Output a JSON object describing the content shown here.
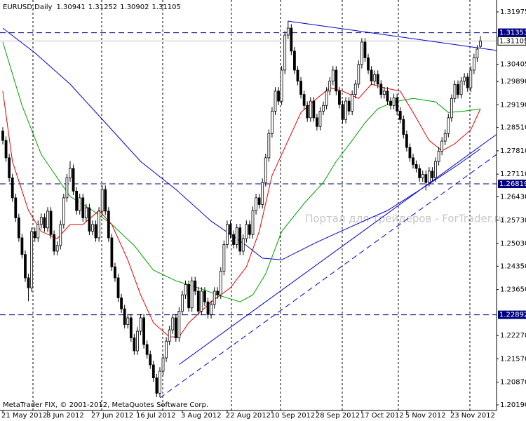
{
  "chart_data": {
    "type": "candlestick",
    "symbol": "EURUSD,Daily",
    "footer": "MetaTrader FIX, © 2001-2012, MetaQuotes Software Corp.",
    "watermark": "Портал для трейдеров - ForTrader.ru",
    "categories": [
      "21 May 2012",
      null,
      null,
      null,
      null,
      null,
      null,
      null,
      null,
      null,
      null,
      null,
      null,
      null,
      "8 Jun 2012",
      null,
      null,
      null,
      null,
      null,
      null,
      null,
      null,
      null,
      null,
      null,
      null,
      null,
      "27 Jun 2012",
      null,
      null,
      null,
      null,
      null,
      null,
      null,
      null,
      null,
      null,
      null,
      null,
      null,
      "16 Jul 2012",
      null,
      null,
      null,
      null,
      null,
      null,
      null,
      null,
      null,
      null,
      null,
      null,
      null,
      "3 Aug 2012",
      null,
      null,
      null,
      null,
      null,
      null,
      null,
      null,
      null,
      null,
      null,
      null,
      null,
      "22 Aug 2012",
      null,
      null,
      null,
      null,
      null,
      null,
      null,
      null,
      null,
      null,
      null,
      null,
      null,
      "10 Sep 2012",
      null,
      null,
      null,
      null,
      null,
      null,
      null,
      null,
      null,
      null,
      null,
      null,
      null,
      "28 Sep 2012",
      null,
      null,
      null,
      null,
      null,
      null,
      null,
      null,
      null,
      null,
      null,
      null,
      null,
      "17 Oct 2012",
      null,
      null,
      null,
      null,
      null,
      null,
      null,
      null,
      null,
      null,
      null,
      null,
      null,
      "5 Nov 2012",
      null,
      null,
      null,
      null,
      null,
      null,
      null,
      null,
      null,
      null,
      null,
      null,
      null,
      "23 Nov 2012",
      null,
      null,
      null,
      null,
      null,
      null,
      null,
      null,
      null
    ],
    "open": [
      1.284,
      1.2812,
      1.276,
      1.27,
      1.264,
      1.258,
      1.252,
      1.247,
      1.24,
      1.237,
      1.2539,
      1.252,
      1.256,
      1.2581,
      1.255,
      1.26,
      1.253,
      1.248,
      1.2497,
      1.256,
      1.264,
      1.27,
      1.2728,
      1.266,
      1.2602,
      1.264,
      1.258,
      1.261,
      1.254,
      1.256,
      1.252,
      1.26,
      1.2665,
      1.26,
      1.252,
      1.2433,
      1.24,
      1.234,
      1.2307,
      1.226,
      1.228,
      1.222,
      1.2181,
      1.224,
      1.228,
      1.22,
      1.217,
      1.2139,
      1.21,
      1.2054,
      1.212,
      1.216,
      1.221,
      1.2244,
      1.228,
      1.222,
      1.23,
      1.2349,
      1.238,
      1.231,
      1.2391,
      1.236,
      1.23,
      1.236,
      1.2328,
      1.229,
      1.232,
      1.236,
      1.2349,
      1.242,
      1.25,
      1.256,
      1.253,
      1.25,
      1.255,
      1.248,
      1.2518,
      1.256,
      1.253,
      1.2602,
      1.264,
      1.262,
      1.2686,
      1.276,
      1.2833,
      1.29,
      1.296,
      1.293,
      1.3023,
      1.3128,
      1.3149,
      1.308,
      1.3023,
      1.299,
      1.295,
      1.2917,
      1.288,
      1.293,
      1.288,
      1.2854,
      1.29,
      1.2917,
      1.296,
      1.299,
      1.3023,
      1.296,
      1.292,
      1.2875,
      1.293,
      1.29,
      1.295,
      1.2981,
      1.304,
      1.3107,
      1.306,
      1.3023,
      1.299,
      1.301,
      1.2981,
      1.295,
      1.296,
      1.293,
      1.2917,
      1.294,
      1.29,
      1.2875,
      1.283,
      1.2791,
      1.276,
      1.274,
      1.2728,
      1.27,
      1.271,
      1.2686,
      1.272,
      1.27,
      1.2749,
      1.278,
      1.281,
      1.2833,
      1.288,
      1.2938,
      1.298,
      1.295,
      1.299,
      1.3002,
      1.297,
      1.3023,
      1.306,
      1.30941
    ],
    "high": [
      1.2852,
      1.2824,
      1.2772,
      1.2712,
      1.2652,
      1.2592,
      1.2532,
      1.2482,
      1.2412,
      1.2551,
      1.2551,
      1.2572,
      1.2593,
      1.2593,
      1.2612,
      1.2612,
      1.2542,
      1.2509,
      1.2572,
      1.2652,
      1.2712,
      1.275,
      1.274,
      1.2672,
      1.2652,
      1.2652,
      1.2622,
      1.2622,
      1.2572,
      1.2572,
      1.2612,
      1.2677,
      1.2677,
      1.2612,
      1.2532,
      1.2445,
      1.2412,
      1.2352,
      1.2319,
      1.2292,
      1.2292,
      1.2232,
      1.2252,
      1.2292,
      1.2292,
      1.2212,
      1.2182,
      1.2151,
      1.2112,
      1.2132,
      1.2172,
      1.2222,
      1.2256,
      1.2292,
      1.2292,
      1.2312,
      1.2361,
      1.2392,
      1.2392,
      1.2403,
      1.2403,
      1.2372,
      1.2372,
      1.2372,
      1.234,
      1.2332,
      1.2372,
      1.2372,
      1.2432,
      1.2512,
      1.2572,
      1.2572,
      1.2542,
      1.2562,
      1.2562,
      1.253,
      1.2572,
      1.2572,
      1.2614,
      1.2652,
      1.2652,
      1.2698,
      1.2772,
      1.2845,
      1.2912,
      1.2972,
      1.2972,
      1.3035,
      1.314,
      1.3171,
      1.3161,
      1.3092,
      1.3035,
      1.3002,
      1.2962,
      1.2929,
      1.2942,
      1.2942,
      1.2892,
      1.2912,
      1.2929,
      1.2972,
      1.3002,
      1.3035,
      1.3035,
      1.2972,
      1.2932,
      1.2942,
      1.2942,
      1.2962,
      1.2993,
      1.3052,
      1.3119,
      1.3119,
      1.3072,
      1.3035,
      1.3022,
      1.3022,
      1.2993,
      1.2972,
      1.2972,
      1.2942,
      1.2952,
      1.2952,
      1.2912,
      1.2887,
      1.2842,
      1.2803,
      1.2772,
      1.2752,
      1.274,
      1.2722,
      1.2722,
      1.2732,
      1.2732,
      1.2761,
      1.2792,
      1.2822,
      1.2845,
      1.2892,
      1.295,
      1.2992,
      1.2992,
      1.3002,
      1.3014,
      1.3014,
      1.3035,
      1.3072,
      1.3098,
      1.31252
    ],
    "low": [
      1.28,
      1.2748,
      1.2688,
      1.2628,
      1.2568,
      1.2508,
      1.2458,
      1.2388,
      1.233,
      1.2358,
      1.2508,
      1.2508,
      1.2548,
      1.2538,
      1.2538,
      1.2518,
      1.2468,
      1.2468,
      1.2485,
      1.2548,
      1.2628,
      1.2688,
      1.2648,
      1.259,
      1.259,
      1.2568,
      1.2568,
      1.2528,
      1.2528,
      1.2508,
      1.2508,
      1.2588,
      1.2588,
      1.2508,
      1.2421,
      1.2388,
      1.2328,
      1.2295,
      1.2248,
      1.2248,
      1.2208,
      1.2169,
      1.2169,
      1.2228,
      1.2188,
      1.2158,
      1.2127,
      1.2088,
      1.2042,
      1.2042,
      1.2108,
      1.2148,
      1.2198,
      1.2232,
      1.2208,
      1.2208,
      1.2288,
      1.2337,
      1.2298,
      1.2298,
      1.2348,
      1.2288,
      1.2288,
      1.2316,
      1.2278,
      1.2278,
      1.2308,
      1.2337,
      1.2337,
      1.2408,
      1.2488,
      1.2518,
      1.2488,
      1.2488,
      1.2468,
      1.2468,
      1.2506,
      1.2518,
      1.2518,
      1.259,
      1.2608,
      1.2608,
      1.2674,
      1.2748,
      1.2821,
      1.2888,
      1.2918,
      1.2918,
      1.3011,
      1.3116,
      1.3068,
      1.3011,
      1.2978,
      1.2938,
      1.2905,
      1.2868,
      1.2868,
      1.2868,
      1.2842,
      1.2842,
      1.2888,
      1.2905,
      1.2948,
      1.2978,
      1.2948,
      1.2908,
      1.2863,
      1.2863,
      1.2888,
      1.2888,
      1.2938,
      1.2969,
      1.3028,
      1.3048,
      1.3011,
      1.2978,
      1.2978,
      1.2969,
      1.2938,
      1.2938,
      1.2918,
      1.2905,
      1.2905,
      1.2888,
      1.2863,
      1.2818,
      1.2779,
      1.2748,
      1.2728,
      1.2716,
      1.2688,
      1.2688,
      1.2662,
      1.2674,
      1.2688,
      1.2688,
      1.2737,
      1.2768,
      1.2798,
      1.2821,
      1.2868,
      1.2926,
      1.2938,
      1.2938,
      1.2978,
      1.2958,
      1.2958,
      1.3011,
      1.3048,
      1.30902
    ],
    "close": [
      1.2812,
      1.276,
      1.27,
      1.264,
      1.258,
      1.252,
      1.247,
      1.24,
      1.237,
      1.2539,
      1.252,
      1.256,
      1.2581,
      1.255,
      1.26,
      1.253,
      1.248,
      1.2497,
      1.256,
      1.264,
      1.27,
      1.2728,
      1.266,
      1.2602,
      1.264,
      1.258,
      1.261,
      1.254,
      1.256,
      1.252,
      1.26,
      1.2665,
      1.26,
      1.252,
      1.2433,
      1.24,
      1.234,
      1.2307,
      1.226,
      1.228,
      1.222,
      1.2181,
      1.224,
      1.228,
      1.22,
      1.217,
      1.2139,
      1.21,
      1.2054,
      1.212,
      1.216,
      1.221,
      1.2244,
      1.228,
      1.222,
      1.23,
      1.2349,
      1.238,
      1.231,
      1.2391,
      1.236,
      1.23,
      1.236,
      1.2328,
      1.229,
      1.232,
      1.236,
      1.2349,
      1.242,
      1.25,
      1.256,
      1.253,
      1.25,
      1.255,
      1.248,
      1.2518,
      1.256,
      1.253,
      1.2602,
      1.264,
      1.262,
      1.2686,
      1.276,
      1.2833,
      1.29,
      1.296,
      1.293,
      1.3023,
      1.3128,
      1.3149,
      1.308,
      1.3023,
      1.299,
      1.295,
      1.2917,
      1.288,
      1.293,
      1.288,
      1.2854,
      1.29,
      1.2917,
      1.296,
      1.299,
      1.3023,
      1.296,
      1.292,
      1.2875,
      1.293,
      1.29,
      1.295,
      1.2981,
      1.304,
      1.3107,
      1.306,
      1.3023,
      1.299,
      1.301,
      1.2981,
      1.295,
      1.296,
      1.293,
      1.2917,
      1.294,
      1.29,
      1.2875,
      1.283,
      1.2791,
      1.276,
      1.274,
      1.2728,
      1.27,
      1.271,
      1.2686,
      1.272,
      1.27,
      1.2749,
      1.278,
      1.281,
      1.2833,
      1.288,
      1.2938,
      1.298,
      1.295,
      1.299,
      1.3002,
      1.297,
      1.3023,
      1.306,
      1.3086,
      1.31105
    ],
    "candle_colors": {
      "up": "#ffffff",
      "down": "#000000",
      "line": "#000000"
    },
    "moving_averages": [
      {
        "color": "#0000cc",
        "x": [
          0,
          10,
          21,
          32,
          43,
          54,
          65,
          76,
          81,
          87,
          98,
          109,
          120,
          131,
          142,
          149
        ],
        "values": [
          1.3149,
          1.3075,
          1.2981,
          1.2865,
          1.2749,
          1.2665,
          1.257,
          1.2497,
          1.2459,
          1.2454,
          1.2507,
          1.2555,
          1.2602,
          1.2669,
          1.2739,
          1.2787
        ]
      },
      {
        "color": "#00a000",
        "x": [
          0,
          6,
          12,
          21,
          28,
          34,
          41,
          47,
          54,
          61,
          67,
          74,
          78,
          82,
          87,
          94,
          100,
          104,
          109,
          113,
          117,
          122,
          128,
          135,
          139,
          144,
          149
        ],
        "values": [
          1.3107,
          1.2917,
          1.277,
          1.2644,
          1.2602,
          1.256,
          1.2497,
          1.2423,
          1.2391,
          1.237,
          1.2349,
          1.2328,
          1.2349,
          1.2412,
          1.2539,
          1.2623,
          1.2686,
          1.2749,
          1.2812,
          1.2865,
          1.2907,
          1.2928,
          1.2938,
          1.2928,
          1.2896,
          1.29,
          1.2907
        ]
      },
      {
        "color": "#e00000",
        "x": [
          0,
          3,
          8,
          12,
          17,
          21,
          25,
          30,
          34,
          39,
          43,
          47,
          52,
          55,
          58,
          65,
          71,
          76,
          80,
          84,
          89,
          93,
          98,
          102,
          106,
          111,
          115,
          119,
          124,
          128,
          133,
          137,
          141,
          146,
          149
        ],
        "values": [
          1.296,
          1.2749,
          1.2602,
          1.2539,
          1.2518,
          1.256,
          1.256,
          1.2602,
          1.256,
          1.2454,
          1.2349,
          1.2265,
          1.2223,
          1.2223,
          1.2265,
          1.2328,
          1.237,
          1.2433,
          1.2539,
          1.2707,
          1.2812,
          1.2896,
          1.2938,
          1.297,
          1.296,
          1.2938,
          1.2981,
          1.297,
          1.296,
          1.2896,
          1.2812,
          1.2781,
          1.2802,
          1.2844,
          1.2907
        ]
      }
    ],
    "trendlines": [
      {
        "color": "#0000cc",
        "dashed": false,
        "x": [
          89,
          154
        ],
        "values": [
          1.317,
          1.3082
        ]
      },
      {
        "color": "#0000cc",
        "dashed": false,
        "x": [
          55,
          154
        ],
        "values": [
          1.214,
          1.283
        ]
      },
      {
        "color": "#0000cc",
        "dashed": true,
        "x": [
          49,
          154
        ],
        "values": [
          1.204,
          1.277
        ]
      }
    ],
    "levels": [
      {
        "value": 1.31353,
        "color": "#000080"
      },
      {
        "value": 1.26819,
        "color": "#000080"
      },
      {
        "value": 1.22892,
        "color": "#000080"
      }
    ],
    "ylim": [
      1.20022,
      1.32333
    ],
    "yticks": [
      1.31975,
      1.30405,
      {
        "value": 1.2989,
        "label": "1.29890"
      },
      {
        "value": 1.2919,
        "label": "1.29190"
      },
      {
        "value": 1.2851,
        "label": "1.28510"
      },
      {
        "value": 1.2781,
        "label": "1.27810"
      },
      {
        "value": 1.2711,
        "label": "1.27110"
      },
      {
        "value": 1.2643,
        "label": "1.26430"
      },
      {
        "value": 1.2573,
        "label": "1.25730"
      },
      {
        "value": 1.2503,
        "label": "1.25030"
      },
      {
        "value": 1.2435,
        "label": "1.24350"
      },
      {
        "value": 1.2365,
        "label": "1.23650"
      },
      {
        "value": 1.2227,
        "label": "1.22270"
      },
      {
        "value": 1.2157,
        "label": "1.21570"
      },
      {
        "value": 1.2087,
        "label": "1.20870"
      },
      {
        "value": 1.2019,
        "label": "1.20190"
      }
    ]
  }
}
